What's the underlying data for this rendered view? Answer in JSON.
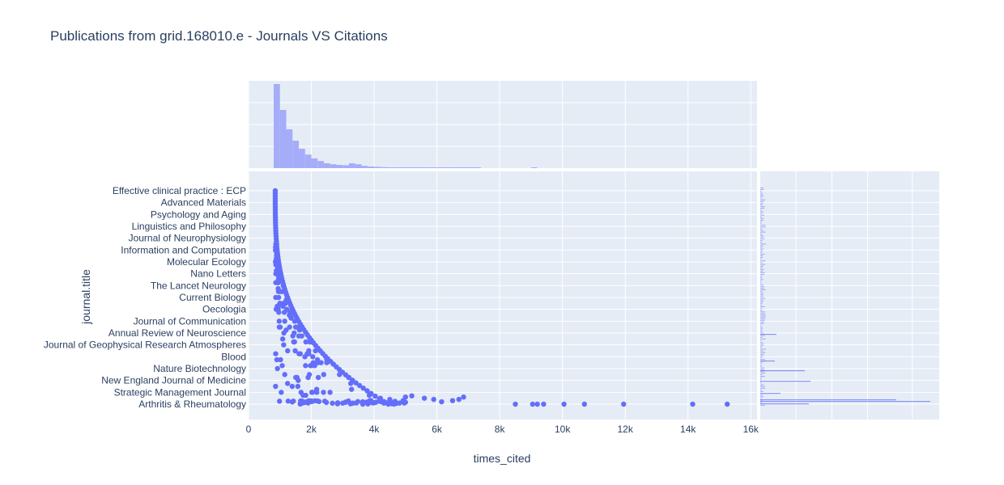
{
  "chart_data": {
    "type": "scatter",
    "title": "Publications from grid.168010.e - Journals VS Citations",
    "xlabel": "times_cited",
    "ylabel": "journal.title",
    "xlim": [
      0,
      16200
    ],
    "x_ticks": [
      0,
      2000,
      4000,
      6000,
      8000,
      10000,
      12000,
      14000,
      16000
    ],
    "x_tick_labels": [
      "0",
      "2k",
      "4k",
      "6k",
      "8k",
      "10k",
      "12k",
      "14k",
      "16k"
    ],
    "marker_color": "#636efa",
    "histogram_color": "#a5adf9",
    "plot_bg": "#e5ecf6",
    "grid": true,
    "legend": "none",
    "y_tick_labels": [
      "Arthritis & Rheumatology",
      "Strategic Management Journal",
      "New England Journal of Medicine",
      "Nature Biotechnology",
      "Blood",
      "Journal of Geophysical Research Atmospheres",
      "Annual Review of Neuroscience",
      "Journal of Communication",
      "Oecologia",
      "Current Biology",
      "The Lancet Neurology",
      "Nano Letters",
      "Molecular Ecology",
      "Information and Computation",
      "Journal of Neurophysiology",
      "Linguistics and Philosophy",
      "Psychology and Aging",
      "Advanced Materials",
      "Effective clinical practice : ECP"
    ],
    "outlier_points": [
      {
        "x": 8500,
        "y": 0
      },
      {
        "x": 9050,
        "y": 0
      },
      {
        "x": 9200,
        "y": 0
      },
      {
        "x": 9400,
        "y": 0
      },
      {
        "x": 10050,
        "y": 0
      },
      {
        "x": 10700,
        "y": 0
      },
      {
        "x": 11950,
        "y": 0
      },
      {
        "x": 14150,
        "y": 0
      },
      {
        "x": 15250,
        "y": 0
      },
      {
        "x": 6850,
        "y": 0.6
      },
      {
        "x": 6700,
        "y": 0.4
      },
      {
        "x": 6500,
        "y": 0.3
      },
      {
        "x": 6150,
        "y": 0.2
      },
      {
        "x": 5900,
        "y": 0.4
      },
      {
        "x": 5600,
        "y": 0.5
      },
      {
        "x": 5200,
        "y": 0.7
      },
      {
        "x": 5000,
        "y": 0.6
      },
      {
        "x": 4500,
        "y": 0.4
      },
      {
        "x": 4200,
        "y": 0.5
      },
      {
        "x": 3900,
        "y": 0.3
      }
    ],
    "x_histogram_counts": [
      260,
      180,
      120,
      85,
      60,
      42,
      30,
      22,
      15,
      12,
      10,
      9,
      15,
      12,
      7,
      5,
      4,
      3,
      2,
      2,
      2,
      1,
      1,
      1,
      1,
      1,
      1,
      1,
      1,
      1,
      1,
      1,
      1,
      0,
      0,
      0,
      0,
      0,
      0,
      0,
      0,
      1,
      0,
      0,
      0,
      0,
      0,
      0,
      0,
      0,
      0,
      0,
      0,
      0,
      0,
      0,
      0,
      0,
      0,
      0,
      0,
      0,
      0,
      0,
      0,
      0,
      0,
      0,
      0,
      0,
      0,
      0,
      0,
      0,
      0,
      0,
      0,
      0,
      0,
      0,
      0
    ],
    "x_histogram_bin_start": 800,
    "x_histogram_bin_width": 200,
    "x_histogram_ymax": 260,
    "y_histogram_max": 500
  }
}
